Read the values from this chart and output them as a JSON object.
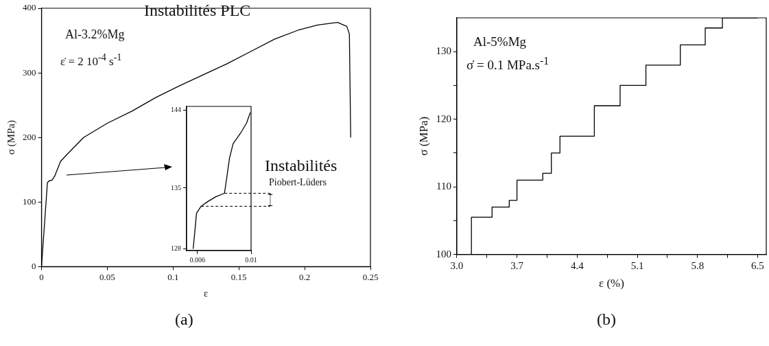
{
  "chart_data": [
    {
      "type": "line",
      "xlabel": "ε",
      "ylabel": "σ (MPa)",
      "xlim": [
        0,
        0.25
      ],
      "ylim": [
        0,
        400
      ],
      "xticks": [
        0,
        0.05,
        0.1,
        0.15,
        0.2,
        0.25
      ],
      "yticks": [
        0,
        100,
        200,
        300,
        400
      ],
      "grid": false,
      "legend": false,
      "marker": "none",
      "x": [
        0,
        0.0045,
        0.006,
        0.008,
        0.01,
        0.0145,
        0.02,
        0.032,
        0.05,
        0.069,
        0.087,
        0.105,
        0.123,
        0.141,
        0.159,
        0.177,
        0.195,
        0.21,
        0.225,
        0.232,
        0.234,
        0.235
      ],
      "series": [
        {
          "color": "#000000",
          "values": [
            0,
            130,
            133,
            134,
            140,
            163,
            175,
            200,
            222,
            241,
            262,
            280,
            297,
            314,
            333,
            352,
            366,
            374,
            378,
            372,
            360,
            200
          ]
        }
      ],
      "annotations": [
        "Instabilités PLC",
        "Al-3.2%Mg",
        "ε̇ = 2 10$^{-4}$ s$^{-1}$",
        "(a)"
      ]
    },
    {
      "type": "line",
      "xlim": [
        0.0052,
        0.01
      ],
      "ylim": [
        127.8,
        144.4
      ],
      "xticks": [
        0.006,
        0.01
      ],
      "yticks": [
        128,
        135,
        144
      ],
      "grid": false,
      "legend": false,
      "marker": "none",
      "x": [
        0.00569,
        0.00582,
        0.00594,
        0.00628,
        0.00683,
        0.00738,
        0.00802,
        0.0082,
        0.00839,
        0.00866,
        0.00921,
        0.00967,
        0.00994
      ],
      "series": [
        {
          "color": "#000000",
          "values": [
            128,
            130.1,
            132.1,
            132.9,
            133.5,
            134,
            134.4,
            136.3,
            138.4,
            140.1,
            141.3,
            142.5,
            143.7
          ]
        }
      ],
      "ref_lines": [
        {
          "axis": "y",
          "value": 134.4,
          "color": "#000000",
          "line_style": "dashed"
        },
        {
          "axis": "y",
          "value": 132.9,
          "color": "#000000",
          "line_style": "dashed"
        }
      ],
      "annotations": [
        "Instabilités",
        "Piobert-Lüders"
      ]
    },
    {
      "type": "step",
      "xlabel": "ε (%)",
      "ylabel": "σ (MPa)",
      "xlim": [
        3.0,
        6.6
      ],
      "ylim": [
        100,
        135
      ],
      "xticks": [
        {
          "value": 3,
          "label": "3.0"
        },
        {
          "value": 3.35,
          "label": null
        },
        3.7,
        {
          "value": 4.05,
          "label": null
        },
        4.4,
        {
          "value": 4.75,
          "label": null
        },
        5.1,
        {
          "value": 5.45,
          "label": null
        },
        5.8,
        {
          "value": 6.15,
          "label": null
        },
        6.5
      ],
      "yticks": [
        100,
        {
          "value": 105,
          "label": null
        },
        110,
        {
          "value": 115,
          "label": null
        },
        120,
        {
          "value": 125,
          "label": null
        },
        130
      ],
      "grid": false,
      "legend": false,
      "marker": "none",
      "x": [
        3.17,
        3.17,
        3.41,
        3.61,
        3.7,
        4.0,
        4.1,
        4.2,
        4.6,
        4.9,
        5.2,
        5.6,
        5.89,
        6.09,
        6.5
      ],
      "series": [
        {
          "color": "#000000",
          "values": [
            100,
            102.6,
            105.5,
            107,
            108,
            111,
            112,
            115,
            117.5,
            122,
            125,
            128,
            131,
            133.5,
            135
          ]
        }
      ],
      "annotations": [
        "Al-5%Mg",
        "σ̇ = 0.1 MPa.s$^{-1}$",
        "(b)"
      ]
    }
  ]
}
